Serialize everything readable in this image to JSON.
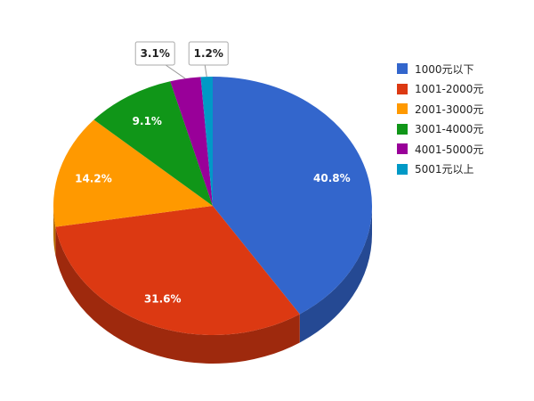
{
  "chart_data": {
    "type": "pie",
    "title": "",
    "slices": [
      {
        "label": "1000元以下",
        "value": 40.8,
        "display": "40.8%",
        "color": "#3366cc"
      },
      {
        "label": "1001-2000元",
        "value": 31.6,
        "display": "31.6%",
        "color": "#dc3912"
      },
      {
        "label": "2001-3000元",
        "value": 14.2,
        "display": "14.2%",
        "color": "#ff9900"
      },
      {
        "label": "3001-4000元",
        "value": 9.1,
        "display": "9.1%",
        "color": "#109618"
      },
      {
        "label": "4001-5000元",
        "value": 3.1,
        "display": "3.1%",
        "color": "#990099"
      },
      {
        "label": "5001元以上",
        "value": 1.2,
        "display": "1.2%",
        "color": "#0099c6"
      }
    ],
    "legend_position": "right",
    "three_d": true
  }
}
